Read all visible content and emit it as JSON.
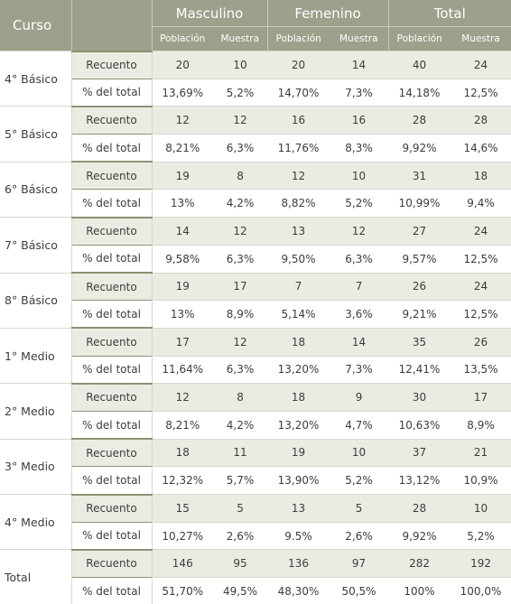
{
  "header": {
    "curso": "Curso",
    "groups": [
      "Masculino",
      "Femenino",
      "Total"
    ],
    "subcols": [
      "Población",
      "Muestra",
      "Población",
      "Muestra",
      "Población",
      "Muestra"
    ]
  },
  "rows": [
    {
      "label": "4° Básico",
      "recuento": "Recuento",
      "pct": "% del total",
      "rec_values": [
        "20",
        "10",
        "20",
        "14",
        "40",
        "24"
      ],
      "pct_values": [
        "13,69%",
        "5,2%",
        "14,70%",
        "7,3%",
        "14,18%",
        "12,5%"
      ]
    },
    {
      "label": "5° Básico",
      "recuento": "Recuento",
      "pct": "% del total",
      "rec_values": [
        "12",
        "12",
        "16",
        "16",
        "28",
        "28"
      ],
      "pct_values": [
        "8,21%",
        "6,3%",
        "11,76%",
        "8,3%",
        "9,92%",
        "14,6%"
      ]
    },
    {
      "label": "6° Básico",
      "recuento": "Recuento",
      "pct": "% del total",
      "rec_values": [
        "19",
        "8",
        "12",
        "10",
        "31",
        "18"
      ],
      "pct_values": [
        "13%",
        "4,2%",
        "8,82%",
        "5,2%",
        "10,99%",
        "9,4%"
      ]
    },
    {
      "label": "7° Básico",
      "recuento": "Recuento",
      "pct": "% del total",
      "rec_values": [
        "14",
        "12",
        "13",
        "12",
        "27",
        "24"
      ],
      "pct_values": [
        "9,58%",
        "6,3%",
        "9,50%",
        "6,3%",
        "9,57%",
        "12,5%"
      ]
    },
    {
      "label": "8° Básico",
      "recuento": "Recuento",
      "pct": "% del total",
      "rec_values": [
        "19",
        "17",
        "7",
        "7",
        "26",
        "24"
      ],
      "pct_values": [
        "13%",
        "8,9%",
        "5,14%",
        "3,6%",
        "9,21%",
        "12,5%"
      ]
    },
    {
      "label": "1° Medio",
      "recuento": "Recuento",
      "pct": "% del total",
      "rec_values": [
        "17",
        "12",
        "18",
        "14",
        "35",
        "26"
      ],
      "pct_values": [
        "11,64%",
        "6,3%",
        "13,20%",
        "7,3%",
        "12,41%",
        "13,5%"
      ]
    },
    {
      "label": "2° Medio",
      "recuento": "Recuento",
      "pct": "% del total",
      "rec_values": [
        "12",
        "8",
        "18",
        "9",
        "30",
        "17"
      ],
      "pct_values": [
        "8,21%",
        "4,2%",
        "13,20%",
        "4,7%",
        "10,63%",
        "8,9%"
      ]
    },
    {
      "label": "3° Medio",
      "recuento": "Recuento",
      "pct": "% del total",
      "rec_values": [
        "18",
        "11",
        "19",
        "10",
        "37",
        "21"
      ],
      "pct_values": [
        "12,32%",
        "5,7%",
        "13,90%",
        "5,2%",
        "13,12%",
        "10,9%"
      ]
    },
    {
      "label": "4° Medio",
      "recuento": "Recuento",
      "pct": "% del total",
      "rec_values": [
        "15",
        "5",
        "13",
        "5",
        "28",
        "10"
      ],
      "pct_values": [
        "10,27%",
        "2,6%",
        "9.5%",
        "2,6%",
        "9,92%",
        "5,2%"
      ]
    },
    {
      "label": "Total",
      "recuento": "Recuento",
      "pct": "% del total",
      "rec_values": [
        "146",
        "95",
        "136",
        "97",
        "282",
        "192"
      ],
      "pct_values": [
        "51,70%",
        "49,5%",
        "48,30%",
        "50,5%",
        "100%",
        "100,0%"
      ]
    }
  ]
}
